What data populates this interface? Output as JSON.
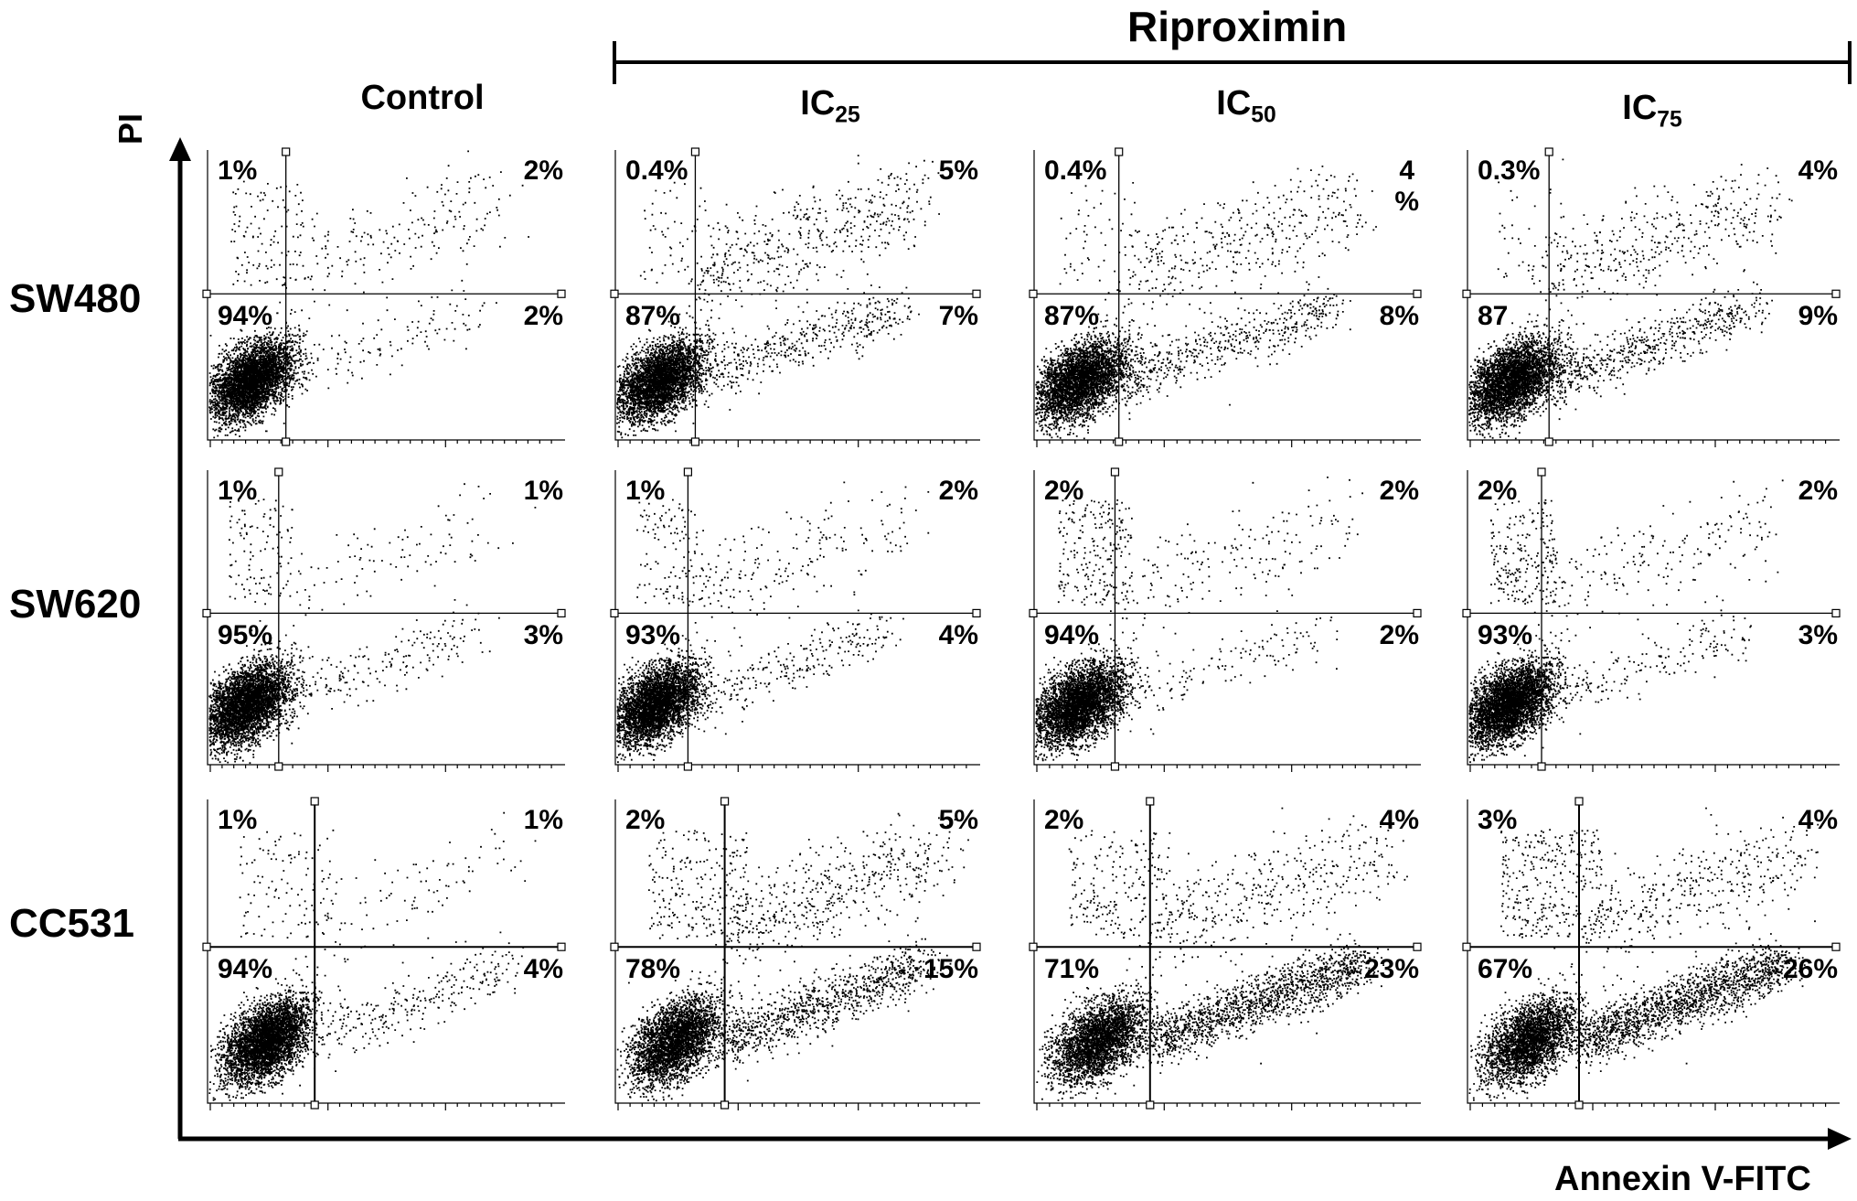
{
  "figure": {
    "group_label": "Riproximin",
    "column_titles": [
      {
        "main": "Control",
        "sub": ""
      },
      {
        "main": "IC",
        "sub": "25"
      },
      {
        "main": "IC",
        "sub": "50"
      },
      {
        "main": "IC",
        "sub": "75"
      }
    ],
    "row_titles": [
      "SW480",
      "SW620",
      "CC531"
    ],
    "y_axis_label": "PI",
    "x_axis_label": "Annexin V-FITC"
  },
  "chart_data": {
    "type": "scatter",
    "xlabel": "Annexin V-FITC",
    "ylabel": "PI",
    "panels": [
      {
        "row": "SW480",
        "column": "Control",
        "quadrants": {
          "upper_left": "1%",
          "upper_right": "2%",
          "lower_left": "94%",
          "lower_right": "2%"
        }
      },
      {
        "row": "SW480",
        "column": "IC25",
        "quadrants": {
          "upper_left": "0.4%",
          "upper_right": "5%",
          "lower_left": "87%",
          "lower_right": "7%"
        }
      },
      {
        "row": "SW480",
        "column": "IC50",
        "quadrants": {
          "upper_left": "0.4%",
          "upper_right": "4 %",
          "lower_left": "87%",
          "lower_right": "8%"
        }
      },
      {
        "row": "SW480",
        "column": "IC75",
        "quadrants": {
          "upper_left": "0.3%",
          "upper_right": "4%",
          "lower_left": "87",
          "lower_right": "9%"
        }
      },
      {
        "row": "SW620",
        "column": "Control",
        "quadrants": {
          "upper_left": "1%",
          "upper_right": "1%",
          "lower_left": "95%",
          "lower_right": "3%"
        }
      },
      {
        "row": "SW620",
        "column": "IC25",
        "quadrants": {
          "upper_left": "1%",
          "upper_right": "2%",
          "lower_left": "93%",
          "lower_right": "4%"
        }
      },
      {
        "row": "SW620",
        "column": "IC50",
        "quadrants": {
          "upper_left": "2%",
          "upper_right": "2%",
          "lower_left": "94%",
          "lower_right": "2%"
        }
      },
      {
        "row": "SW620",
        "column": "IC75",
        "quadrants": {
          "upper_left": "2%",
          "upper_right": "2%",
          "lower_left": "93%",
          "lower_right": "3%"
        }
      },
      {
        "row": "CC531",
        "column": "Control",
        "quadrants": {
          "upper_left": "1%",
          "upper_right": "1%",
          "lower_left": "94%",
          "lower_right": "4%"
        }
      },
      {
        "row": "CC531",
        "column": "IC25",
        "quadrants": {
          "upper_left": "2%",
          "upper_right": "5%",
          "lower_left": "78%",
          "lower_right": "15%"
        }
      },
      {
        "row": "CC531",
        "column": "IC50",
        "quadrants": {
          "upper_left": "2%",
          "upper_right": "4%",
          "lower_left": "71%",
          "lower_right": "23%"
        }
      },
      {
        "row": "CC531",
        "column": "IC75",
        "quadrants": {
          "upper_left": "3%",
          "upper_right": "4%",
          "lower_left": "67%",
          "lower_right": "26%"
        }
      }
    ]
  }
}
